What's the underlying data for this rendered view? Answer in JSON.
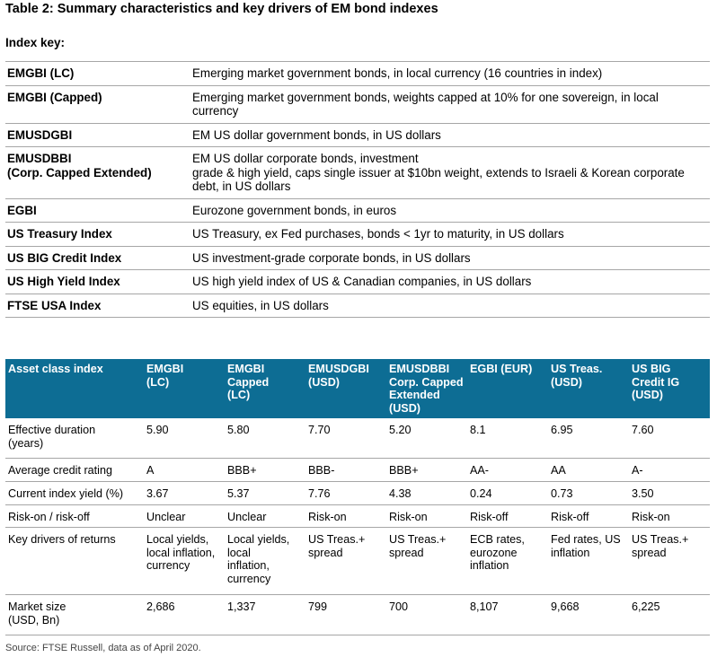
{
  "title": "Table 2: Summary characteristics and key drivers of EM bond indexes",
  "subtitle": "Index key:",
  "index_key": [
    {
      "name": "EMGBI (LC)",
      "desc": "Emerging market government bonds, in local currency (16 countries in index)"
    },
    {
      "name": "EMGBI (Capped)",
      "desc": "Emerging market government bonds, weights capped at 10% for one sovereign, in local currency"
    },
    {
      "name": "EMUSDGBI",
      "desc": "EM US dollar government bonds, in US dollars"
    },
    {
      "name": "EMUSDBBI\n(Corp. Capped Extended)",
      "desc": "EM US dollar corporate bonds, investment\ngrade & high yield, caps single issuer at $10bn weight, extends to Israeli & Korean corporate debt, in US dollars"
    },
    {
      "name": "EGBI",
      "desc": "Eurozone government bonds, in euros"
    },
    {
      "name": "US Treasury Index",
      "desc": "US Treasury, ex Fed purchases, bonds < 1yr to maturity, in US dollars"
    },
    {
      "name": "US BIG Credit Index",
      "desc": "US investment-grade corporate bonds, in US dollars"
    },
    {
      "name": "US High Yield Index",
      "desc": "US high yield index of US & Canadian companies, in US dollars"
    },
    {
      "name": "FTSE USA Index",
      "desc": "US equities, in US dollars"
    }
  ],
  "asset_table": {
    "header_color": "#0d6d94",
    "columns": [
      "Asset class index",
      "EMGBI\n(LC)",
      "EMGBI\nCapped\n(LC)",
      "EMUSDGBI\n(USD)",
      "EMUSDBBI\nCorp. Capped\nExtended\n(USD)",
      "EGBI (EUR)",
      "US Treas.\n(USD)",
      "US BIG\nCredit IG\n(USD)"
    ],
    "rows": [
      {
        "label": "Effective duration\n(years)",
        "values": [
          "5.90",
          "5.80",
          "7.70",
          "5.20",
          "8.1",
          "6.95",
          "7.60"
        ]
      },
      {
        "label": "Average credit rating",
        "values": [
          "A",
          "BBB+",
          "BBB-",
          "BBB+",
          "AA-",
          "AA",
          "A-"
        ]
      },
      {
        "label": "Current index yield (%)",
        "values": [
          "3.67",
          "5.37",
          "7.76",
          "4.38",
          "0.24",
          "0.73",
          "3.50"
        ]
      },
      {
        "label": "Risk-on / risk-off",
        "values": [
          "Unclear",
          "Unclear",
          "Risk-on",
          "Risk-on",
          "Risk-off",
          "Risk-off",
          "Risk-on"
        ]
      },
      {
        "label": "Key drivers of returns",
        "values": [
          "Local yields,\nlocal inflation,\ncurrency",
          "Local yields,\nlocal\ninflation,\ncurrency",
          "US Treas.+\nspread",
          "US Treas.+\nspread",
          "ECB rates,\neurozone\ninflation",
          "Fed rates, US\ninflation",
          "US Treas.+\nspread"
        ]
      },
      {
        "label": "Market size\n(USD, Bn)",
        "values": [
          "2,686",
          "1,337",
          "799",
          "700",
          "8,107",
          "9,668",
          "6,225"
        ]
      }
    ]
  },
  "source": "Source: FTSE Russell, data as of April 2020."
}
